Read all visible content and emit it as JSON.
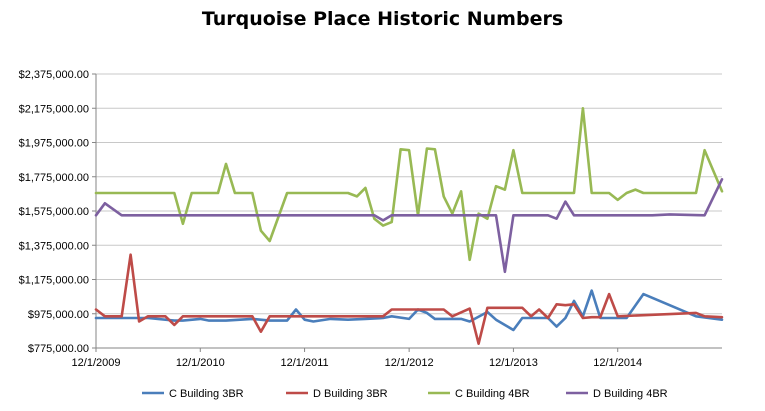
{
  "chart_data": {
    "type": "line",
    "title": "Turquoise Place Historic Numbers",
    "xlabel": "",
    "ylabel": "",
    "xlim": [
      "2009-12-01",
      "2015-12-01"
    ],
    "ylim": [
      775000,
      2375000
    ],
    "y_ticks": [
      775000,
      975000,
      1175000,
      1375000,
      1575000,
      1775000,
      1975000,
      2175000,
      2375000
    ],
    "y_tick_labels": [
      "$775,000.00",
      "$975,000.00",
      "$1,175,000.00",
      "$1,375,000.00",
      "$1,575,000.00",
      "$1,775,000.00",
      "$1,975,000.00",
      "$2,175,000.00",
      "$2,375,000.00"
    ],
    "x_ticks": [
      "2009-12-01",
      "2010-12-01",
      "2011-12-01",
      "2012-12-01",
      "2013-12-01",
      "2014-12-01"
    ],
    "x_tick_labels": [
      "12/1/2009",
      "12/1/2010",
      "12/1/2011",
      "12/1/2012",
      "12/1/2013",
      "12/1/2014"
    ],
    "grid": true,
    "legend": "bottom",
    "series": [
      {
        "name": "C Building 3BR",
        "color": "#4a7ebb",
        "points": [
          [
            "2009-12-01",
            950000
          ],
          [
            "2010-03-01",
            950000
          ],
          [
            "2010-06-01",
            950000
          ],
          [
            "2010-09-01",
            935000
          ],
          [
            "2010-10-01",
            935000
          ],
          [
            "2010-12-01",
            945000
          ],
          [
            "2011-01-01",
            935000
          ],
          [
            "2011-03-01",
            935000
          ],
          [
            "2011-06-01",
            945000
          ],
          [
            "2011-08-01",
            935000
          ],
          [
            "2011-10-01",
            935000
          ],
          [
            "2011-11-01",
            1000000
          ],
          [
            "2011-12-01",
            940000
          ],
          [
            "2012-01-01",
            930000
          ],
          [
            "2012-03-01",
            945000
          ],
          [
            "2012-05-01",
            940000
          ],
          [
            "2012-07-01",
            945000
          ],
          [
            "2012-09-01",
            950000
          ],
          [
            "2012-10-01",
            960000
          ],
          [
            "2012-12-01",
            945000
          ],
          [
            "2013-01-01",
            1000000
          ],
          [
            "2013-02-01",
            980000
          ],
          [
            "2013-03-01",
            945000
          ],
          [
            "2013-06-01",
            945000
          ],
          [
            "2013-07-01",
            930000
          ],
          [
            "2013-09-01",
            985000
          ],
          [
            "2013-10-01",
            940000
          ],
          [
            "2013-12-01",
            880000
          ],
          [
            "2014-01-01",
            950000
          ],
          [
            "2014-04-01",
            950000
          ],
          [
            "2014-05-01",
            900000
          ],
          [
            "2014-06-01",
            950000
          ],
          [
            "2014-07-01",
            1050000
          ],
          [
            "2014-08-01",
            960000
          ],
          [
            "2014-09-01",
            1110000
          ],
          [
            "2014-10-01",
            950000
          ],
          [
            "2015-01-01",
            950000
          ],
          [
            "2015-03-01",
            1090000
          ],
          [
            "2015-09-01",
            960000
          ],
          [
            "2015-12-01",
            940000
          ]
        ]
      },
      {
        "name": "D Building 3BR",
        "color": "#be4b48",
        "points": [
          [
            "2009-12-01",
            1000000
          ],
          [
            "2010-01-01",
            960000
          ],
          [
            "2010-03-01",
            960000
          ],
          [
            "2010-04-01",
            1320000
          ],
          [
            "2010-05-01",
            930000
          ],
          [
            "2010-06-01",
            960000
          ],
          [
            "2010-08-01",
            960000
          ],
          [
            "2010-09-01",
            910000
          ],
          [
            "2010-10-01",
            960000
          ],
          [
            "2011-06-01",
            960000
          ],
          [
            "2011-07-01",
            870000
          ],
          [
            "2011-08-01",
            960000
          ],
          [
            "2012-09-01",
            960000
          ],
          [
            "2012-10-01",
            1000000
          ],
          [
            "2013-04-01",
            1000000
          ],
          [
            "2013-05-01",
            960000
          ],
          [
            "2013-07-01",
            1005000
          ],
          [
            "2013-08-01",
            800000
          ],
          [
            "2013-09-01",
            1010000
          ],
          [
            "2014-01-01",
            1010000
          ],
          [
            "2014-02-01",
            960000
          ],
          [
            "2014-03-01",
            1000000
          ],
          [
            "2014-04-01",
            950000
          ],
          [
            "2014-05-01",
            1030000
          ],
          [
            "2014-06-01",
            1025000
          ],
          [
            "2014-07-01",
            1030000
          ],
          [
            "2014-08-01",
            950000
          ],
          [
            "2014-09-01",
            955000
          ],
          [
            "2014-10-01",
            955000
          ],
          [
            "2014-11-01",
            1090000
          ],
          [
            "2014-12-01",
            960000
          ],
          [
            "2015-09-01",
            980000
          ],
          [
            "2015-10-01",
            960000
          ],
          [
            "2015-12-01",
            955000
          ]
        ]
      },
      {
        "name": "C Building 4BR",
        "color": "#98b954",
        "points": [
          [
            "2009-12-01",
            1680000
          ],
          [
            "2010-01-01",
            1680000
          ],
          [
            "2010-06-01",
            1680000
          ],
          [
            "2010-09-01",
            1680000
          ],
          [
            "2010-10-01",
            1500000
          ],
          [
            "2010-11-01",
            1680000
          ],
          [
            "2011-02-01",
            1680000
          ],
          [
            "2011-03-01",
            1850000
          ],
          [
            "2011-04-01",
            1680000
          ],
          [
            "2011-06-01",
            1680000
          ],
          [
            "2011-07-01",
            1460000
          ],
          [
            "2011-08-01",
            1400000
          ],
          [
            "2011-10-01",
            1680000
          ],
          [
            "2012-01-01",
            1680000
          ],
          [
            "2012-03-01",
            1680000
          ],
          [
            "2012-05-01",
            1680000
          ],
          [
            "2012-06-01",
            1660000
          ],
          [
            "2012-07-01",
            1710000
          ],
          [
            "2012-08-01",
            1530000
          ],
          [
            "2012-09-01",
            1490000
          ],
          [
            "2012-10-01",
            1510000
          ],
          [
            "2012-11-01",
            1935000
          ],
          [
            "2012-12-01",
            1930000
          ],
          [
            "2013-01-01",
            1550000
          ],
          [
            "2013-02-01",
            1940000
          ],
          [
            "2013-03-01",
            1935000
          ],
          [
            "2013-04-01",
            1660000
          ],
          [
            "2013-05-01",
            1560000
          ],
          [
            "2013-06-01",
            1690000
          ],
          [
            "2013-07-01",
            1290000
          ],
          [
            "2013-08-01",
            1560000
          ],
          [
            "2013-09-01",
            1530000
          ],
          [
            "2013-10-01",
            1720000
          ],
          [
            "2013-11-01",
            1700000
          ],
          [
            "2013-12-01",
            1930000
          ],
          [
            "2014-01-01",
            1680000
          ],
          [
            "2014-07-01",
            1680000
          ],
          [
            "2014-08-01",
            2175000
          ],
          [
            "2014-09-01",
            1680000
          ],
          [
            "2014-11-01",
            1680000
          ],
          [
            "2014-12-01",
            1640000
          ],
          [
            "2015-01-01",
            1680000
          ],
          [
            "2015-02-01",
            1700000
          ],
          [
            "2015-03-01",
            1680000
          ],
          [
            "2015-09-01",
            1680000
          ],
          [
            "2015-10-01",
            1930000
          ],
          [
            "2015-12-01",
            1690000
          ]
        ]
      },
      {
        "name": "D Building 4BR",
        "color": "#7d60a0",
        "points": [
          [
            "2009-12-01",
            1550000
          ],
          [
            "2010-01-01",
            1620000
          ],
          [
            "2010-03-01",
            1550000
          ],
          [
            "2011-06-01",
            1550000
          ],
          [
            "2012-08-01",
            1550000
          ],
          [
            "2012-09-01",
            1520000
          ],
          [
            "2012-10-01",
            1550000
          ],
          [
            "2013-06-01",
            1550000
          ],
          [
            "2013-09-01",
            1550000
          ],
          [
            "2013-10-01",
            1550000
          ],
          [
            "2013-11-01",
            1220000
          ],
          [
            "2013-12-01",
            1550000
          ],
          [
            "2014-04-01",
            1550000
          ],
          [
            "2014-05-01",
            1530000
          ],
          [
            "2014-06-01",
            1630000
          ],
          [
            "2014-07-01",
            1550000
          ],
          [
            "2015-04-01",
            1550000
          ],
          [
            "2015-06-01",
            1555000
          ],
          [
            "2015-10-01",
            1550000
          ],
          [
            "2015-12-01",
            1760000
          ]
        ]
      }
    ]
  }
}
